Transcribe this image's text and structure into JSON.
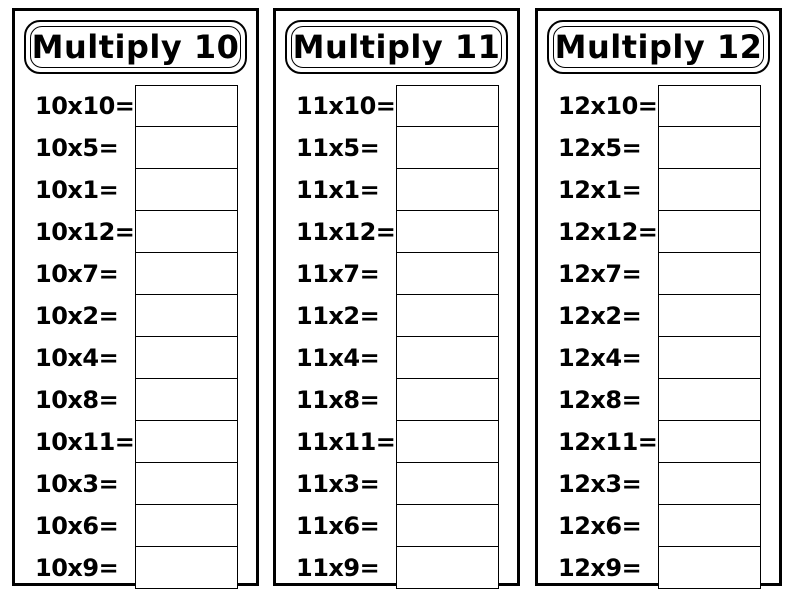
{
  "panels": [
    {
      "title": "Multiply 10",
      "problems": [
        "10x10=",
        "10x5=",
        "10x1=",
        "10x12=",
        "10x7=",
        "10x2=",
        "10x4=",
        "10x8=",
        "10x11=",
        "10x3=",
        "10x6=",
        "10x9="
      ]
    },
    {
      "title": "Multiply 11",
      "problems": [
        "11x10=",
        "11x5=",
        "11x1=",
        "11x12=",
        "11x7=",
        "11x2=",
        "11x4=",
        "11x8=",
        "11x11=",
        "11x3=",
        "11x6=",
        "11x9="
      ]
    },
    {
      "title": "Multiply 12",
      "problems": [
        "12x10=",
        "12x5=",
        "12x1=",
        "12x12=",
        "12x7=",
        "12x2=",
        "12x4=",
        "12x8=",
        "12x11=",
        "12x3=",
        "12x6=",
        "12x9="
      ]
    }
  ]
}
